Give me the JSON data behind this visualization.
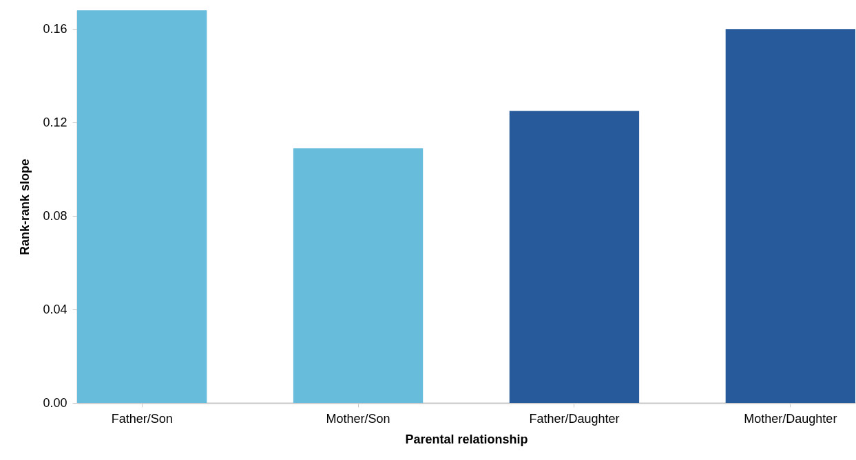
{
  "chart_data": {
    "type": "bar",
    "xlabel": "Parental relationship",
    "ylabel": "Rank-rank slope",
    "categories": [
      "Father/Son",
      "Mother/Son",
      "Father/Daughter",
      "Mother/Daughter"
    ],
    "values": [
      0.168,
      0.109,
      0.125,
      0.16
    ],
    "colors": [
      "#67bcdb",
      "#67bcdb",
      "#265a9a",
      "#265a9a"
    ],
    "ylim": [
      0,
      0.168
    ],
    "yticks": [
      {
        "value": 0,
        "label": "0.00"
      },
      {
        "value": 0.04,
        "label": "0.04"
      },
      {
        "value": 0.08,
        "label": "0.08"
      },
      {
        "value": 0.12,
        "label": "0.12"
      },
      {
        "value": 0.16,
        "label": "0.16"
      }
    ],
    "grid": false
  }
}
